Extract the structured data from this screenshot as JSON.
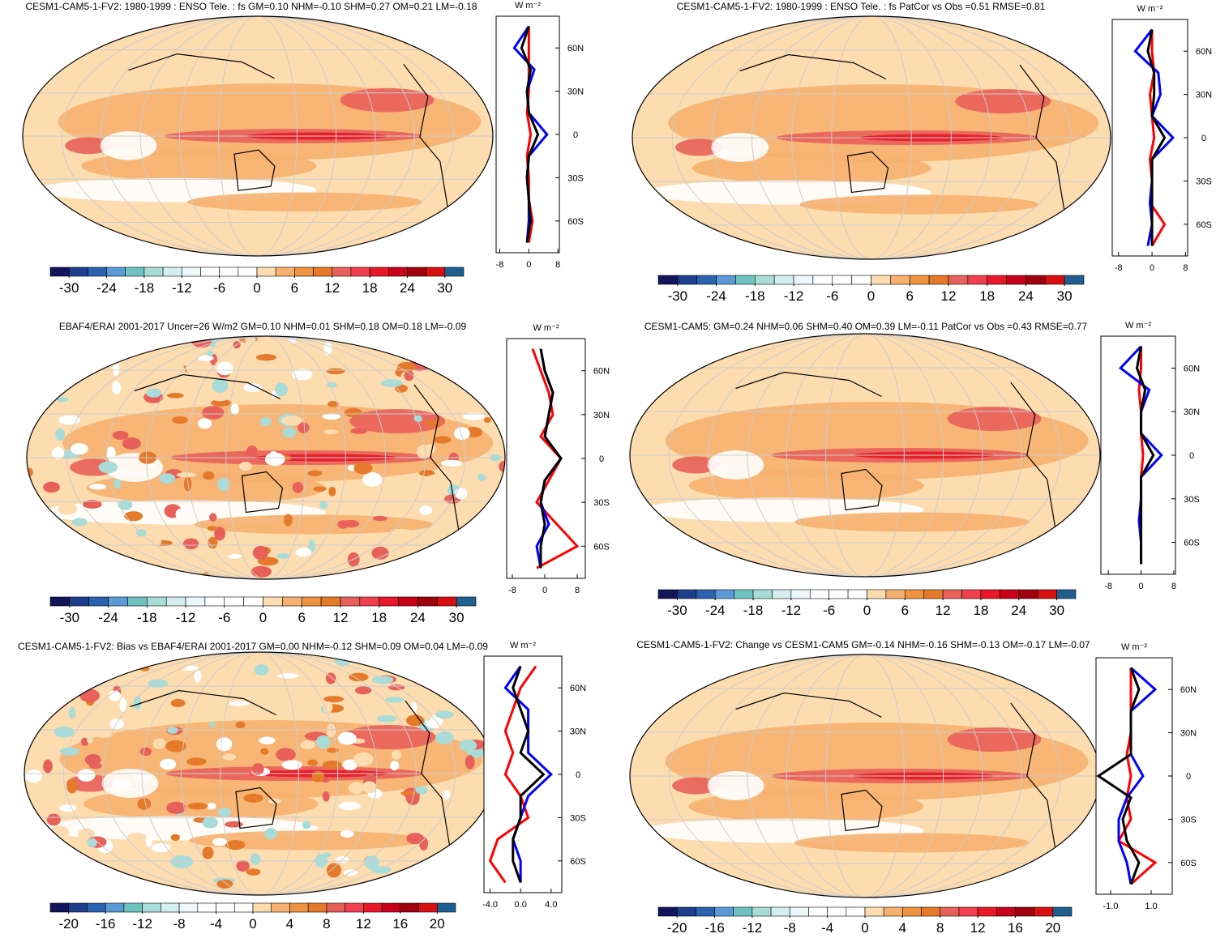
{
  "chart_data": [
    {
      "type": "map",
      "title": "CESM1-CAM5-1-FV2: 1980-1999 : ENSO Tele. : fs GM=0.10 NHM=-0.10 SHM=0.27 OM=0.21 LM=-0.18",
      "colorbar": {
        "clim": [
          -33,
          33
        ],
        "ticks": [
          -30,
          -24,
          -18,
          -12,
          -6,
          0,
          6,
          12,
          18,
          24,
          30
        ],
        "colors": [
          "#14145a",
          "#1d3e8c",
          "#2a62b0",
          "#5a9ad6",
          "#6ec3c0",
          "#a8dcd8",
          "#d4eef0",
          "#eef8fa",
          "#ffffff",
          "#ffffff",
          "#ffffff",
          "#fddcaf",
          "#f6b070",
          "#ee9340",
          "#e47a2a",
          "#e8605a",
          "#f04050",
          "#e81828",
          "#c8001a",
          "#a0000e",
          "#d81010",
          "#1f5f8f"
        ]
      },
      "zonal": {
        "unit": "W m⁻²",
        "xlim": [
          -9,
          8.4
        ],
        "xticks": [
          -8,
          0,
          8
        ],
        "ylim": [
          -82,
          82
        ],
        "yticks": [
          {
            "value": 60,
            "label": "60N"
          },
          {
            "value": 30,
            "label": "30N"
          },
          0,
          {
            "value": -30,
            "label": "30S"
          },
          {
            "value": -60,
            "label": "60S"
          }
        ],
        "x": [
          -75,
          -60,
          -45,
          -30,
          -15,
          0,
          15,
          30,
          45,
          60,
          75
        ],
        "series": [
          {
            "color": "#ff0000",
            "values": [
              0,
              1,
              0,
              0,
              -0.5,
              0.5,
              -0.5,
              0,
              0,
              0,
              0
            ]
          },
          {
            "color": "#0000ff",
            "values": [
              -0.5,
              0,
              0,
              -0.5,
              0,
              5,
              0,
              -0.5,
              1.5,
              -4,
              0
            ]
          },
          {
            "color": "#000000",
            "values": [
              -0.5,
              0.5,
              0,
              -0.5,
              0,
              2.5,
              0,
              -0.5,
              0.5,
              -2,
              0
            ]
          }
        ]
      }
    },
    {
      "type": "map",
      "title": "CESM1-CAM5-1-FV2: 1980-1999 : ENSO Tele. : fs PatCor vs Obs =0.51 RMSE=0.81",
      "colorbar": {
        "clim": [
          -33,
          33
        ],
        "ticks": [
          -30,
          -24,
          -18,
          -12,
          -6,
          0,
          6,
          12,
          18,
          24,
          30
        ],
        "colors": [
          "#14145a",
          "#1d3e8c",
          "#2a62b0",
          "#5a9ad6",
          "#6ec3c0",
          "#a8dcd8",
          "#d4eef0",
          "#eef8fa",
          "#ffffff",
          "#ffffff",
          "#ffffff",
          "#fddcaf",
          "#f6b070",
          "#ee9340",
          "#e47a2a",
          "#e8605a",
          "#f04050",
          "#e81828",
          "#c8001a",
          "#a0000e",
          "#d81010",
          "#1f5f8f"
        ]
      },
      "zonal": {
        "unit": "W m⁻²",
        "xlim": [
          -9.5,
          8.5
        ],
        "xticks": [
          -8,
          0,
          8
        ],
        "ylim": [
          -82,
          82
        ],
        "yticks": [
          {
            "value": 60,
            "label": "60N"
          },
          {
            "value": 30,
            "label": "30N"
          },
          0,
          {
            "value": -30,
            "label": "30S"
          },
          {
            "value": -60,
            "label": "60S"
          }
        ],
        "x": [
          -75,
          -60,
          -45,
          -30,
          -15,
          0,
          15,
          30,
          45,
          60,
          75
        ],
        "series": [
          {
            "color": "#ff0000",
            "values": [
              0,
              3,
              -0.5,
              0,
              -0.5,
              0.5,
              0,
              -0.5,
              0.5,
              0,
              0
            ]
          },
          {
            "color": "#0000ff",
            "values": [
              -1,
              0,
              -0.5,
              0,
              0,
              5,
              0,
              2,
              1.5,
              -4,
              0
            ]
          },
          {
            "color": "#000000",
            "values": [
              0,
              0,
              0,
              0,
              0,
              3,
              0,
              0.5,
              0.5,
              -1,
              0
            ]
          }
        ]
      }
    },
    {
      "type": "map",
      "title": "EBAF4/ERAI 2001-2017 Uncer=26 W/m2 GM=0.10 NHM=0.01 SHM=0.18 OM=0.18 LM=-0.09",
      "colorbar": {
        "clim": [
          -33,
          33
        ],
        "ticks": [
          -30,
          -24,
          -18,
          -12,
          -6,
          0,
          6,
          12,
          18,
          24,
          30
        ],
        "colors": [
          "#14145a",
          "#1d3e8c",
          "#2a62b0",
          "#5a9ad6",
          "#6ec3c0",
          "#a8dcd8",
          "#d4eef0",
          "#eef8fa",
          "#ffffff",
          "#ffffff",
          "#ffffff",
          "#fddcaf",
          "#f6b070",
          "#ee9340",
          "#e47a2a",
          "#e8605a",
          "#f04050",
          "#e81828",
          "#c8001a",
          "#a0000e",
          "#d81010",
          "#1f5f8f"
        ]
      },
      "zonal": {
        "unit": "W m⁻²",
        "xlim": [
          -9.4,
          10
        ],
        "xticks": [
          -8,
          0,
          8
        ],
        "ylim": [
          -82,
          82
        ],
        "yticks": [
          {
            "value": 60,
            "label": "60N"
          },
          {
            "value": 30,
            "label": "30N"
          },
          0,
          {
            "value": -30,
            "label": "30S"
          },
          {
            "value": -60,
            "label": "60S"
          }
        ],
        "x": [
          -75,
          -60,
          -45,
          -30,
          -15,
          0,
          15,
          30,
          45,
          60,
          75
        ],
        "series": [
          {
            "color": "#ff0000",
            "values": [
              -2,
              8,
              3,
              -2,
              1,
              4,
              -1,
              2,
              1,
              -1,
              -3
            ]
          },
          {
            "color": "#0000ff",
            "values": [
              -1,
              -2,
              1,
              -1,
              0,
              4,
              0,
              1,
              2,
              0,
              -1
            ]
          },
          {
            "color": "#000000",
            "values": [
              -1,
              -1,
              0,
              -1,
              0,
              4,
              0,
              1,
              2,
              0,
              -1
            ]
          }
        ]
      }
    },
    {
      "type": "map",
      "title": "CESM1-CAM5: GM=0.24 NHM=0.06 SHM=0.40 OM=0.39 LM=-0.11 PatCor vs Obs =0.43 RMSE=0.77",
      "colorbar": {
        "clim": [
          -33,
          33
        ],
        "ticks": [
          -30,
          -24,
          -18,
          -12,
          -6,
          0,
          6,
          12,
          18,
          24,
          30
        ],
        "colors": [
          "#14145a",
          "#1d3e8c",
          "#2a62b0",
          "#5a9ad6",
          "#6ec3c0",
          "#a8dcd8",
          "#d4eef0",
          "#eef8fa",
          "#ffffff",
          "#ffffff",
          "#ffffff",
          "#fddcaf",
          "#f6b070",
          "#ee9340",
          "#e47a2a",
          "#e8605a",
          "#f04050",
          "#e81828",
          "#c8001a",
          "#a0000e",
          "#d81010",
          "#1f5f8f"
        ]
      },
      "zonal": {
        "unit": "W m⁻²",
        "xlim": [
          -9.8,
          8.4
        ],
        "xticks": [
          -8,
          0,
          8
        ],
        "ylim": [
          -82,
          82
        ],
        "yticks": [
          {
            "value": 60,
            "label": "60N"
          },
          {
            "value": 30,
            "label": "30N"
          },
          0,
          {
            "value": -30,
            "label": "30S"
          },
          {
            "value": -60,
            "label": "60S"
          }
        ],
        "x": [
          -75,
          -60,
          -45,
          -30,
          -15,
          0,
          15,
          30,
          45,
          60,
          75
        ],
        "series": [
          {
            "color": "#ff0000",
            "values": [
              0,
              0,
              0,
              0,
              0,
              0.5,
              0,
              0,
              -0.5,
              0,
              0
            ]
          },
          {
            "color": "#0000ff",
            "values": [
              0,
              0,
              -0.5,
              0,
              0,
              5,
              0,
              0,
              2,
              -5,
              0
            ]
          },
          {
            "color": "#000000",
            "values": [
              0,
              0,
              0,
              0,
              0,
              3,
              0,
              0,
              1,
              -1,
              0
            ]
          }
        ]
      }
    },
    {
      "type": "map",
      "title": "CESM1-CAM5-1-FV2: Bias vs EBAF4/ERAI 2001-2017 GM=0.00 NHM=-0.12 SHM=0.09 OM=0.04 LM=-0.09",
      "colorbar": {
        "clim": [
          -22,
          22
        ],
        "ticks": [
          -20,
          -16,
          -12,
          -8,
          -4,
          0,
          4,
          8,
          12,
          16,
          20
        ],
        "colors": [
          "#14145a",
          "#1d3e8c",
          "#2a62b0",
          "#5a9ad6",
          "#6ec3c0",
          "#a8dcd8",
          "#d4eef0",
          "#eef8fa",
          "#ffffff",
          "#ffffff",
          "#ffffff",
          "#fddcaf",
          "#f6b070",
          "#ee9340",
          "#e47a2a",
          "#e8605a",
          "#f04050",
          "#e81828",
          "#c8001a",
          "#a0000e",
          "#d81010",
          "#1f5f8f"
        ]
      },
      "zonal": {
        "unit": "W m⁻²",
        "xlim": [
          -4.8,
          5.4
        ],
        "xticks": [
          {
            "value": -4,
            "label": "-4.0"
          },
          {
            "value": 0,
            "label": "0.0"
          },
          {
            "value": 4,
            "label": "4.0"
          }
        ],
        "ylim": [
          -82,
          82
        ],
        "yticks": [
          {
            "value": 60,
            "label": "60N"
          },
          {
            "value": 30,
            "label": "30N"
          },
          0,
          {
            "value": -30,
            "label": "30S"
          },
          {
            "value": -60,
            "label": "60S"
          }
        ],
        "x": [
          -75,
          -60,
          -45,
          -30,
          -15,
          0,
          15,
          30,
          45,
          60,
          75
        ],
        "series": [
          {
            "color": "#ff0000",
            "values": [
              -2,
              -4,
              -3,
              1,
              0,
              -2,
              -1,
              -2,
              -1,
              0,
              2
            ]
          },
          {
            "color": "#0000ff",
            "values": [
              0,
              0,
              -1,
              0,
              1,
              4,
              1,
              1,
              1,
              -2,
              0
            ]
          },
          {
            "color": "#000000",
            "values": [
              0,
              -1,
              -1,
              0,
              0,
              3,
              0,
              1,
              0,
              -1,
              0
            ]
          }
        ]
      }
    },
    {
      "type": "map",
      "title": "CESM1-CAM5-1-FV2: Change vs CESM1-CAM5 GM=-0.14 NHM=-0.16 SHM=-0.13 OM=-0.17 LM=-0.07",
      "colorbar": {
        "clim": [
          -22,
          22
        ],
        "ticks": [
          -20,
          -16,
          -12,
          -8,
          -4,
          0,
          4,
          8,
          12,
          16,
          20
        ],
        "colors": [
          "#14145a",
          "#1d3e8c",
          "#2a62b0",
          "#5a9ad6",
          "#6ec3c0",
          "#a8dcd8",
          "#d4eef0",
          "#eef8fa",
          "#ffffff",
          "#ffffff",
          "#ffffff",
          "#fddcaf",
          "#f6b070",
          "#ee9340",
          "#e47a2a",
          "#e8605a",
          "#f04050",
          "#e81828",
          "#c8001a",
          "#a0000e",
          "#d81010",
          "#1f5f8f"
        ]
      },
      "zonal": {
        "unit": "W m⁻²",
        "xlim": [
          -1.72,
          2.04
        ],
        "xticks": [
          {
            "value": -1,
            "label": "-1.0"
          },
          {
            "value": 1,
            "label": "1.0"
          }
        ],
        "ylim": [
          -82,
          82
        ],
        "yticks": [
          {
            "value": 60,
            "label": "60N"
          },
          {
            "value": 30,
            "label": "30N"
          },
          0,
          {
            "value": -30,
            "label": "30S"
          },
          {
            "value": -60,
            "label": "60S"
          }
        ],
        "x": [
          -75,
          -60,
          -45,
          -30,
          -15,
          0,
          15,
          30,
          45,
          60,
          75
        ],
        "series": [
          {
            "color": "#ff0000",
            "values": [
              0,
              1.2,
              -0.6,
              0,
              -0.2,
              0,
              -0.2,
              0,
              0,
              0,
              0
            ]
          },
          {
            "color": "#0000ff",
            "values": [
              0,
              -0.2,
              -0.6,
              -0.6,
              -0.2,
              0.6,
              0,
              0,
              0,
              1.2,
              0
            ]
          },
          {
            "color": "#000000",
            "values": [
              0,
              0.4,
              -0.2,
              -0.4,
              0,
              -1.6,
              0,
              0,
              0,
              0.4,
              0
            ]
          }
        ]
      }
    }
  ]
}
